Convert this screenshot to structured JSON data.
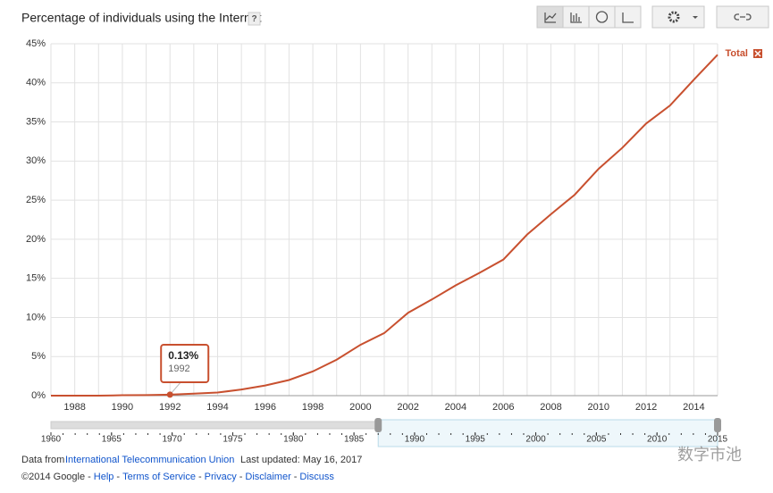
{
  "chart_data": {
    "type": "line",
    "title": "Percentage of individuals using the Internet",
    "help": "?",
    "x": [
      1987,
      1988,
      1989,
      1990,
      1991,
      1992,
      1993,
      1994,
      1995,
      1996,
      1997,
      1998,
      1999,
      2000,
      2001,
      2002,
      2003,
      2004,
      2005,
      2006,
      2007,
      2008,
      2009,
      2010,
      2011,
      2012,
      2013,
      2014,
      2015
    ],
    "series": [
      {
        "name": "Total",
        "color": "#c8502f",
        "values": [
          0,
          0,
          0,
          0.05,
          0.07,
          0.13,
          0.25,
          0.4,
          0.78,
          1.3,
          2.0,
          3.1,
          4.6,
          6.5,
          8.0,
          10.6,
          12.3,
          14.1,
          15.7,
          17.4,
          20.6,
          23.2,
          25.7,
          29.0,
          31.7,
          34.8,
          37.1,
          40.4,
          43.6
        ]
      }
    ],
    "xlim": [
      1987,
      2015
    ],
    "xticks": [
      1988,
      1990,
      1992,
      1994,
      1996,
      1998,
      2000,
      2002,
      2004,
      2006,
      2008,
      2010,
      2012,
      2014
    ],
    "x_minor_ticks": [
      1987,
      1989,
      1991,
      1993,
      1995,
      1997,
      1999,
      2001,
      2003,
      2005,
      2007,
      2009,
      2011,
      2013,
      2015
    ],
    "ylim": [
      0,
      45
    ],
    "yticks": [
      {
        "value": 0,
        "label": "0%"
      },
      {
        "value": 5,
        "label": "5%"
      },
      {
        "value": 10,
        "label": "10%"
      },
      {
        "value": 15,
        "label": "15%"
      },
      {
        "value": 20,
        "label": "20%"
      },
      {
        "value": 25,
        "label": "25%"
      },
      {
        "value": 30,
        "label": "30%"
      },
      {
        "value": 35,
        "label": "35%"
      },
      {
        "value": 40,
        "label": "40%"
      },
      {
        "value": 45,
        "label": "45%"
      }
    ],
    "grid": true,
    "legend": "right",
    "tooltip": {
      "x": 1992,
      "label": "0.13%"
    },
    "timeline": {
      "xlim": [
        1960,
        2015
      ],
      "xticks": [
        1960,
        1965,
        1970,
        1975,
        1980,
        1985,
        1990,
        1995,
        2000,
        2005,
        2010,
        2015
      ],
      "selection": [
        1987,
        2015
      ]
    }
  },
  "footer": {
    "source_prefix": "Data from",
    "source": "International Telecommunication Union",
    "updated": "Last updated: May 16, 2017",
    "copyright": "©2014 Google",
    "links": [
      "Help",
      "Terms of Service",
      "Privacy",
      "Disclaimer",
      "Discuss"
    ]
  },
  "watermark": "数字市池"
}
